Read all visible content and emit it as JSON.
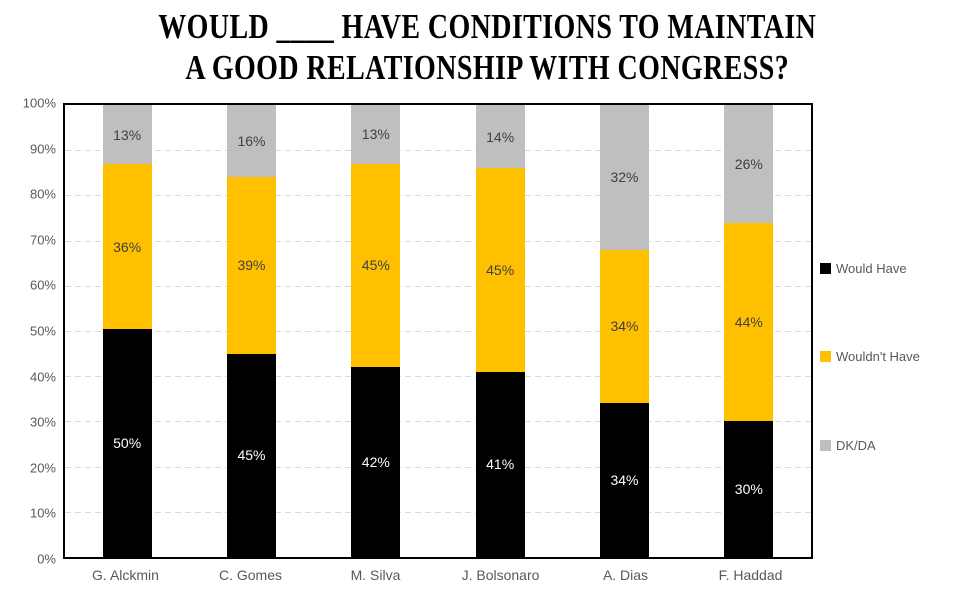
{
  "title": {
    "line1": "WOULD ____ HAVE CONDITIONS TO MAINTAIN",
    "line2": "A GOOD RELATIONSHIP WITH CONGRESS?"
  },
  "chart_data": {
    "type": "bar",
    "subtype": "stacked-100",
    "title": "WOULD ____ HAVE CONDITIONS TO MAINTAIN A GOOD RELATIONSHIP WITH CONGRESS?",
    "categories": [
      "G. Alckmin",
      "C. Gomes",
      "M. Silva",
      "J. Bolsonaro",
      "A. Dias",
      "F. Haddad"
    ],
    "series": [
      {
        "name": "Would Have",
        "color": "#000000",
        "label_color": "#ffffff",
        "values": [
          50,
          45,
          42,
          41,
          34,
          30
        ]
      },
      {
        "name": "Wouldn't Have",
        "color": "#ffc000",
        "label_color": "#404040",
        "values": [
          36,
          39,
          45,
          45,
          34,
          44
        ]
      },
      {
        "name": "DK/DA",
        "color": "#bfbfbf",
        "label_color": "#404040",
        "values": [
          13,
          16,
          13,
          14,
          32,
          26
        ]
      }
    ],
    "data_label_format": "{value}%",
    "y_axis": {
      "min": 0,
      "max": 100,
      "step": 10,
      "tick_labels": [
        "0%",
        "10%",
        "20%",
        "30%",
        "40%",
        "50%",
        "60%",
        "70%",
        "80%",
        "90%",
        "100%"
      ]
    },
    "x_axis": {
      "tick_labels": [
        "G. Alckmin",
        "C. Gomes",
        "M. Silva",
        "J. Bolsonaro",
        "A. Dias",
        "F. Haddad"
      ]
    },
    "legend": {
      "position": "right",
      "entries": [
        "Would Have",
        "Wouldn't Have",
        "DK/DA"
      ]
    },
    "grid": {
      "horizontal": true,
      "style": "dashed",
      "color": "#d9d9d9"
    },
    "plot_border_color": "#000000",
    "axis_text_color": "#595959",
    "background_color": "#ffffff"
  }
}
